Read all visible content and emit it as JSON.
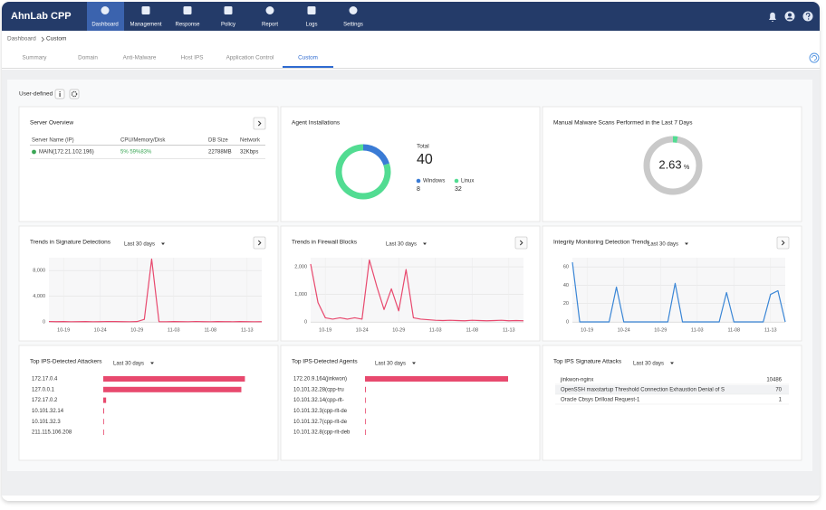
{
  "header": {
    "logo": "AhnLab CPP",
    "nav": [
      "Dashboard",
      "Management",
      "Response",
      "Policy",
      "Report",
      "Logs",
      "Settings"
    ]
  },
  "breadcrumb": [
    "Dashboard",
    "Custom"
  ],
  "tabs": [
    "Summary",
    "Domain",
    "Anti-Malware",
    "Host IPS",
    "Application Control",
    "Custom"
  ],
  "section": "User-defined",
  "server_overview": {
    "title": "Server Overview",
    "columns": [
      "Server Name (IP)",
      "CPU/Memory/Disk",
      "DB Size",
      "Network"
    ],
    "rows": [
      [
        "MAIN(172.21.102.196)",
        "5% 59%83%",
        "22788MB",
        "32Kbps"
      ]
    ]
  },
  "chart_data": [
    {
      "type": "donut",
      "title": "Agent Installations",
      "total_label": "Total",
      "total": 40,
      "categories": [
        "Windows",
        "Linux"
      ],
      "values": [
        8,
        32
      ],
      "colors": [
        "#3a7bd5",
        "#52dc92"
      ]
    },
    {
      "type": "gauge",
      "title": "Manual Malware Scans Performed in the Last 7 Days",
      "value": 2.63,
      "unit": "%",
      "ylim": [
        0,
        100
      ],
      "color": "#52dc92",
      "track_color": "#c9c9c9"
    },
    {
      "type": "line",
      "title": "Trends in Signature Detections",
      "period": "Last 30 days",
      "categories": [
        null,
        null,
        "10-19",
        null,
        null,
        null,
        null,
        "10-24",
        null,
        null,
        null,
        null,
        "10-29",
        null,
        null,
        null,
        null,
        "11-03",
        null,
        null,
        null,
        null,
        "11-08",
        null,
        null,
        null,
        null,
        "11-13",
        null,
        null
      ],
      "values": [
        60,
        40,
        50,
        30,
        40,
        50,
        30,
        40,
        60,
        50,
        40,
        30,
        50,
        400,
        9800,
        40,
        30,
        50,
        40,
        30,
        60,
        40,
        30,
        50,
        40,
        30,
        50,
        40,
        30,
        40
      ],
      "color": "#e8496e",
      "ylim": [
        0,
        10000
      ],
      "yticks": [
        0,
        {
          "value": 4000,
          "label": "4,000"
        },
        {
          "value": 8000,
          "label": "8,000"
        }
      ],
      "grid": true
    },
    {
      "type": "line",
      "title": "Trends in Firewall Blocks",
      "period": "Last 30 days",
      "categories": [
        null,
        null,
        "10-19",
        null,
        null,
        null,
        null,
        "10-24",
        null,
        null,
        null,
        null,
        "10-29",
        null,
        null,
        null,
        null,
        "11-03",
        null,
        null,
        null,
        null,
        "11-08",
        null,
        null,
        null,
        null,
        "11-13",
        null,
        null
      ],
      "values": [
        2100,
        700,
        150,
        100,
        150,
        100,
        150,
        100,
        2250,
        1300,
        450,
        1200,
        400,
        1900,
        150,
        100,
        80,
        60,
        50,
        60,
        50,
        40,
        60,
        50,
        40,
        50,
        60,
        40,
        50,
        40
      ],
      "color": "#e8496e",
      "ylim": [
        0,
        2330
      ],
      "yticks": [
        0,
        {
          "value": 1000,
          "label": "1,000"
        },
        {
          "value": 2000,
          "label": "2,000"
        }
      ],
      "grid": true
    },
    {
      "type": "line",
      "title": "Integrity Monitoring Detection Trends",
      "period": "Last 30 days",
      "categories": [
        null,
        null,
        "10-19",
        null,
        null,
        null,
        null,
        "10-24",
        null,
        null,
        null,
        null,
        "10-29",
        null,
        null,
        null,
        null,
        "11-03",
        null,
        null,
        null,
        null,
        "11-08",
        null,
        null,
        null,
        null,
        "11-13",
        null,
        null
      ],
      "values": [
        65,
        0,
        0,
        0,
        0,
        0,
        38,
        0,
        0,
        0,
        0,
        0,
        0,
        0,
        42,
        0,
        0,
        0,
        0,
        0,
        0,
        32,
        0,
        0,
        0,
        0,
        0,
        30,
        34,
        0
      ],
      "color": "#3a86d6",
      "ylim": [
        0,
        70
      ],
      "yticks": [
        0,
        20,
        40,
        60
      ],
      "grid": true
    },
    {
      "type": "hbar",
      "title": "Top IPS-Detected Attackers",
      "period": "Last 30 days",
      "categories": [
        "172.17.0.4",
        "127.0.0.1",
        "172.17.0.2",
        "10.101.32.14",
        "10.101.32.3",
        "211.115.106.208"
      ],
      "values": [
        990,
        965,
        20,
        6,
        5,
        4
      ],
      "color": "#e8496e",
      "xlim": [
        0,
        1000
      ]
    },
    {
      "type": "hbar",
      "title": "Top IPS-Detected Agents",
      "period": "Last 30 days",
      "categories": [
        "172.20.9.164(jinkwon)",
        "10.101.32.28(cpp-tru",
        "10.101.32.14(cpp-rlt-",
        "10.101.32.3(cpp-rlt-de",
        "10.101.32.7(cpp-rlt-de",
        "10.101.32.8(cpp-rlt-deb"
      ],
      "values": [
        1000,
        6,
        5,
        5,
        4,
        4
      ],
      "color": "#e8496e",
      "xlim": [
        0,
        1000
      ]
    }
  ],
  "signature_attacks": {
    "title": "Top IPS Signature Attacks",
    "period": "Last 30 days",
    "rows": [
      [
        "jinkwon-nginx",
        10486
      ],
      [
        "OpenSSH maxstartup Threshold Connection Exhaustion Denial of S",
        70
      ],
      [
        "Oracle Cbsys Drilload Request-1",
        1
      ]
    ]
  }
}
